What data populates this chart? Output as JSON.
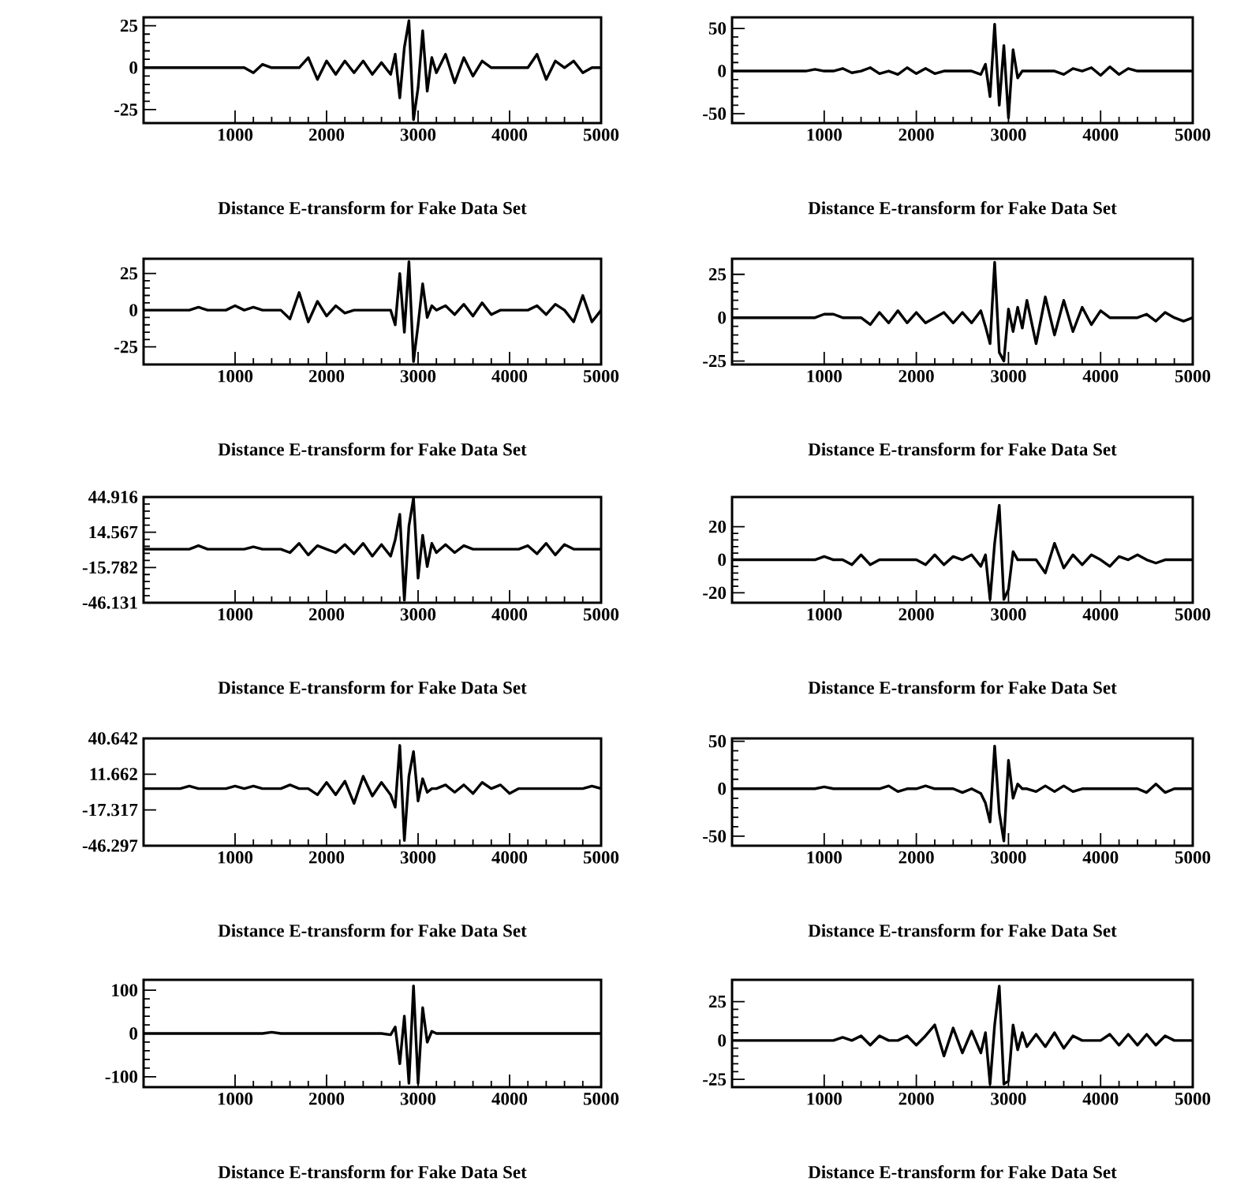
{
  "chart_data": [
    {
      "type": "line",
      "xlabel": "Distance E-transform for Fake Data Set",
      "color": "#000000",
      "xlim": [
        0,
        5000
      ],
      "ylim": [
        -33,
        30
      ],
      "xticks": [
        1000,
        2000,
        3000,
        4000,
        5000
      ],
      "yticks": [
        -25,
        0,
        25
      ],
      "x": [
        0,
        100,
        200,
        300,
        400,
        500,
        600,
        700,
        800,
        900,
        1000,
        1100,
        1200,
        1300,
        1400,
        1500,
        1600,
        1700,
        1800,
        1900,
        2000,
        2100,
        2200,
        2300,
        2400,
        2500,
        2600,
        2700,
        2750,
        2800,
        2850,
        2900,
        2950,
        3000,
        3050,
        3100,
        3150,
        3200,
        3300,
        3400,
        3500,
        3600,
        3700,
        3800,
        3900,
        4000,
        4100,
        4200,
        4300,
        4400,
        4500,
        4600,
        4700,
        4800,
        4900,
        5000
      ],
      "values": [
        0,
        0,
        0,
        0,
        0,
        0,
        0,
        0,
        0,
        0,
        0,
        0,
        -3,
        2,
        0,
        0,
        0,
        0,
        6,
        -7,
        4,
        -4,
        4,
        -3,
        4,
        -4,
        3,
        -4,
        8,
        -18,
        12,
        28,
        -31,
        -12,
        22,
        -14,
        6,
        -3,
        8,
        -9,
        6,
        -5,
        4,
        0,
        0,
        0,
        0,
        0,
        8,
        -7,
        4,
        0,
        4,
        -3,
        0,
        0
      ]
    },
    {
      "type": "line",
      "xlabel": "Distance E-transform for Fake Data Set",
      "color": "#000000",
      "xlim": [
        0,
        5000
      ],
      "ylim": [
        -61,
        63
      ],
      "xticks": [
        1000,
        2000,
        3000,
        4000,
        5000
      ],
      "yticks": [
        -50,
        0,
        50
      ],
      "x": [
        0,
        100,
        200,
        300,
        400,
        500,
        600,
        700,
        800,
        900,
        1000,
        1100,
        1200,
        1300,
        1400,
        1500,
        1600,
        1700,
        1800,
        1900,
        2000,
        2100,
        2200,
        2300,
        2400,
        2500,
        2600,
        2700,
        2750,
        2800,
        2850,
        2900,
        2950,
        3000,
        3050,
        3100,
        3150,
        3200,
        3300,
        3400,
        3500,
        3600,
        3700,
        3800,
        3900,
        4000,
        4100,
        4200,
        4300,
        4400,
        4500,
        4600,
        4700,
        4800,
        4900,
        5000
      ],
      "values": [
        0,
        0,
        0,
        0,
        0,
        0,
        0,
        0,
        0,
        2,
        0,
        0,
        3,
        -2,
        0,
        4,
        -3,
        0,
        -4,
        4,
        -3,
        3,
        -3,
        0,
        0,
        0,
        0,
        -4,
        8,
        -30,
        55,
        -40,
        30,
        -55,
        25,
        -8,
        0,
        0,
        0,
        0,
        0,
        -4,
        3,
        0,
        4,
        -5,
        5,
        -4,
        3,
        0,
        0,
        0,
        0,
        0,
        0,
        0
      ]
    },
    {
      "type": "line",
      "xlabel": "Distance E-transform for Fake Data Set",
      "color": "#000000",
      "xlim": [
        0,
        5000
      ],
      "ylim": [
        -37,
        35
      ],
      "xticks": [
        1000,
        2000,
        3000,
        4000,
        5000
      ],
      "yticks": [
        -25,
        0,
        25
      ],
      "x": [
        0,
        100,
        200,
        300,
        400,
        500,
        600,
        700,
        800,
        900,
        1000,
        1100,
        1200,
        1300,
        1400,
        1500,
        1600,
        1700,
        1800,
        1900,
        2000,
        2100,
        2200,
        2300,
        2400,
        2500,
        2600,
        2700,
        2750,
        2800,
        2850,
        2900,
        2950,
        3000,
        3050,
        3100,
        3150,
        3200,
        3300,
        3400,
        3500,
        3600,
        3700,
        3800,
        3900,
        4000,
        4100,
        4200,
        4300,
        4400,
        4500,
        4600,
        4700,
        4800,
        4900,
        5000
      ],
      "values": [
        0,
        0,
        0,
        0,
        0,
        0,
        2,
        0,
        0,
        0,
        3,
        0,
        2,
        0,
        0,
        0,
        -6,
        12,
        -8,
        6,
        -4,
        3,
        -2,
        0,
        0,
        0,
        0,
        0,
        -10,
        25,
        -15,
        33,
        -35,
        -10,
        18,
        -5,
        3,
        0,
        3,
        -3,
        4,
        -4,
        5,
        -3,
        0,
        0,
        0,
        0,
        3,
        -3,
        4,
        0,
        -8,
        10,
        -8,
        0
      ]
    },
    {
      "type": "line",
      "xlabel": "Distance E-transform for Fake Data Set",
      "color": "#000000",
      "xlim": [
        0,
        5000
      ],
      "ylim": [
        -27,
        34
      ],
      "xticks": [
        1000,
        2000,
        3000,
        4000,
        5000
      ],
      "yticks": [
        -25,
        0,
        25
      ],
      "x": [
        0,
        100,
        200,
        300,
        400,
        500,
        600,
        700,
        800,
        900,
        1000,
        1100,
        1200,
        1300,
        1400,
        1500,
        1600,
        1700,
        1800,
        1900,
        2000,
        2100,
        2200,
        2300,
        2400,
        2500,
        2600,
        2700,
        2750,
        2800,
        2850,
        2900,
        2950,
        3000,
        3050,
        3100,
        3150,
        3200,
        3300,
        3400,
        3500,
        3600,
        3700,
        3800,
        3900,
        4000,
        4100,
        4200,
        4300,
        4400,
        4500,
        4600,
        4700,
        4800,
        4900,
        5000
      ],
      "values": [
        0,
        0,
        0,
        0,
        0,
        0,
        0,
        0,
        0,
        0,
        2,
        2,
        0,
        0,
        0,
        -4,
        3,
        -3,
        4,
        -3,
        3,
        -3,
        0,
        3,
        -3,
        3,
        -3,
        4,
        -5,
        -15,
        32,
        -20,
        -25,
        5,
        -8,
        6,
        -6,
        10,
        -15,
        12,
        -10,
        10,
        -8,
        6,
        -4,
        4,
        0,
        0,
        0,
        0,
        2,
        -2,
        3,
        0,
        -2,
        0
      ]
    },
    {
      "type": "line",
      "xlabel": "Distance E-transform for Fake Data Set",
      "color": "#000000",
      "xlim": [
        0,
        5000
      ],
      "ylim": [
        -46.131,
        44.916
      ],
      "xticks": [
        1000,
        2000,
        3000,
        4000,
        5000
      ],
      "yticks": [
        -46.131,
        -15.782,
        14.567,
        44.916
      ],
      "x": [
        0,
        100,
        200,
        300,
        400,
        500,
        600,
        700,
        800,
        900,
        1000,
        1100,
        1200,
        1300,
        1400,
        1500,
        1600,
        1700,
        1800,
        1900,
        2000,
        2100,
        2200,
        2300,
        2400,
        2500,
        2600,
        2700,
        2750,
        2800,
        2850,
        2900,
        2950,
        3000,
        3050,
        3100,
        3150,
        3200,
        3300,
        3400,
        3500,
        3600,
        3700,
        3800,
        3900,
        4000,
        4100,
        4200,
        4300,
        4400,
        4500,
        4600,
        4700,
        4800,
        4900,
        5000
      ],
      "values": [
        0,
        0,
        0,
        0,
        0,
        0,
        3,
        0,
        0,
        0,
        0,
        0,
        2,
        0,
        0,
        0,
        -3,
        5,
        -5,
        3,
        0,
        -3,
        4,
        -4,
        5,
        -6,
        4,
        -6,
        8,
        30,
        -44,
        20,
        44,
        -25,
        12,
        -15,
        5,
        -3,
        4,
        -3,
        3,
        0,
        0,
        0,
        0,
        0,
        0,
        3,
        -4,
        5,
        -5,
        4,
        0,
        0,
        0,
        0
      ]
    },
    {
      "type": "line",
      "xlabel": "Distance E-transform for Fake Data Set",
      "color": "#000000",
      "xlim": [
        0,
        5000
      ],
      "ylim": [
        -26,
        38
      ],
      "xticks": [
        1000,
        2000,
        3000,
        4000,
        5000
      ],
      "yticks": [
        -20,
        0,
        20
      ],
      "x": [
        0,
        100,
        200,
        300,
        400,
        500,
        600,
        700,
        800,
        900,
        1000,
        1100,
        1200,
        1300,
        1400,
        1500,
        1600,
        1700,
        1800,
        1900,
        2000,
        2100,
        2200,
        2300,
        2400,
        2500,
        2600,
        2700,
        2750,
        2800,
        2850,
        2900,
        2950,
        3000,
        3050,
        3100,
        3150,
        3200,
        3300,
        3400,
        3500,
        3600,
        3700,
        3800,
        3900,
        4000,
        4100,
        4200,
        4300,
        4400,
        4500,
        4600,
        4700,
        4800,
        4900,
        5000
      ],
      "values": [
        0,
        0,
        0,
        0,
        0,
        0,
        0,
        0,
        0,
        0,
        2,
        0,
        0,
        -3,
        3,
        -3,
        0,
        0,
        0,
        0,
        0,
        -3,
        3,
        -3,
        2,
        0,
        3,
        -4,
        3,
        -24,
        10,
        33,
        -24,
        -18,
        5,
        0,
        0,
        0,
        0,
        -8,
        10,
        -5,
        3,
        -3,
        3,
        0,
        -4,
        2,
        0,
        3,
        0,
        -2,
        0,
        0,
        0,
        0
      ]
    },
    {
      "type": "line",
      "xlabel": "Distance E-transform for Fake Data Set",
      "color": "#000000",
      "xlim": [
        0,
        5000
      ],
      "ylim": [
        -46.297,
        40.642
      ],
      "xticks": [
        1000,
        2000,
        3000,
        4000,
        5000
      ],
      "yticks": [
        -46.297,
        -17.317,
        11.662,
        40.642
      ],
      "x": [
        0,
        100,
        200,
        300,
        400,
        500,
        600,
        700,
        800,
        900,
        1000,
        1100,
        1200,
        1300,
        1400,
        1500,
        1600,
        1700,
        1800,
        1900,
        2000,
        2100,
        2200,
        2300,
        2400,
        2500,
        2600,
        2700,
        2750,
        2800,
        2850,
        2900,
        2950,
        3000,
        3050,
        3100,
        3150,
        3200,
        3300,
        3400,
        3500,
        3600,
        3700,
        3800,
        3900,
        4000,
        4100,
        4200,
        4300,
        4400,
        4500,
        4600,
        4700,
        4800,
        4900,
        5000
      ],
      "values": [
        0,
        0,
        0,
        0,
        0,
        2,
        0,
        0,
        0,
        0,
        2,
        0,
        2,
        0,
        0,
        0,
        3,
        0,
        0,
        -5,
        5,
        -5,
        6,
        -12,
        10,
        -6,
        5,
        -5,
        -15,
        35,
        -42,
        10,
        30,
        -10,
        8,
        -3,
        0,
        0,
        3,
        -3,
        3,
        -4,
        5,
        0,
        3,
        -4,
        0,
        0,
        0,
        0,
        0,
        0,
        0,
        0,
        2,
        0
      ]
    },
    {
      "type": "line",
      "xlabel": "Distance E-transform for Fake Data Set",
      "color": "#000000",
      "xlim": [
        0,
        5000
      ],
      "ylim": [
        -60,
        53
      ],
      "xticks": [
        1000,
        2000,
        3000,
        4000,
        5000
      ],
      "yticks": [
        -50,
        0,
        50
      ],
      "x": [
        0,
        100,
        200,
        300,
        400,
        500,
        600,
        700,
        800,
        900,
        1000,
        1100,
        1200,
        1300,
        1400,
        1500,
        1600,
        1700,
        1800,
        1900,
        2000,
        2100,
        2200,
        2300,
        2400,
        2500,
        2600,
        2700,
        2750,
        2800,
        2850,
        2900,
        2950,
        3000,
        3050,
        3100,
        3150,
        3200,
        3300,
        3400,
        3500,
        3600,
        3700,
        3800,
        3900,
        4000,
        4100,
        4200,
        4300,
        4400,
        4500,
        4600,
        4700,
        4800,
        4900,
        5000
      ],
      "values": [
        0,
        0,
        0,
        0,
        0,
        0,
        0,
        0,
        0,
        0,
        2,
        0,
        0,
        0,
        0,
        0,
        0,
        3,
        -3,
        0,
        0,
        3,
        0,
        0,
        0,
        -4,
        0,
        -5,
        -15,
        -35,
        45,
        -25,
        -55,
        30,
        -10,
        5,
        0,
        0,
        -3,
        3,
        -3,
        3,
        -3,
        0,
        0,
        0,
        0,
        0,
        0,
        0,
        -4,
        5,
        -4,
        0,
        0,
        0
      ]
    },
    {
      "type": "line",
      "xlabel": "Distance E-transform for Fake Data Set",
      "color": "#000000",
      "xlim": [
        0,
        5000
      ],
      "ylim": [
        -124,
        124
      ],
      "xticks": [
        1000,
        2000,
        3000,
        4000,
        5000
      ],
      "yticks": [
        -100,
        0,
        100
      ],
      "x": [
        0,
        100,
        200,
        300,
        400,
        500,
        600,
        700,
        800,
        900,
        1000,
        1100,
        1200,
        1300,
        1400,
        1500,
        1600,
        1700,
        1800,
        1900,
        2000,
        2100,
        2200,
        2300,
        2400,
        2500,
        2600,
        2700,
        2750,
        2800,
        2850,
        2900,
        2950,
        3000,
        3050,
        3100,
        3150,
        3200,
        3300,
        3400,
        3500,
        3600,
        3700,
        3800,
        3900,
        4000,
        4100,
        4200,
        4300,
        4400,
        4500,
        4600,
        4700,
        4800,
        4900,
        5000
      ],
      "values": [
        0,
        0,
        0,
        0,
        0,
        0,
        0,
        0,
        0,
        0,
        0,
        0,
        0,
        0,
        3,
        0,
        0,
        0,
        0,
        0,
        0,
        0,
        0,
        0,
        0,
        0,
        0,
        -3,
        15,
        -70,
        40,
        -115,
        110,
        -115,
        60,
        -20,
        5,
        0,
        0,
        0,
        0,
        0,
        0,
        0,
        0,
        0,
        0,
        0,
        0,
        0,
        0,
        0,
        0,
        0,
        0,
        0
      ]
    },
    {
      "type": "line",
      "xlabel": "Distance E-transform for Fake Data Set",
      "color": "#000000",
      "xlim": [
        0,
        5000
      ],
      "ylim": [
        -30,
        39
      ],
      "xticks": [
        1000,
        2000,
        3000,
        4000,
        5000
      ],
      "yticks": [
        -25,
        0,
        25
      ],
      "x": [
        0,
        100,
        200,
        300,
        400,
        500,
        600,
        700,
        800,
        900,
        1000,
        1100,
        1200,
        1300,
        1400,
        1500,
        1600,
        1700,
        1800,
        1900,
        2000,
        2100,
        2200,
        2300,
        2400,
        2500,
        2600,
        2700,
        2750,
        2800,
        2850,
        2900,
        2950,
        3000,
        3050,
        3100,
        3150,
        3200,
        3300,
        3400,
        3500,
        3600,
        3700,
        3800,
        3900,
        4000,
        4100,
        4200,
        4300,
        4400,
        4500,
        4600,
        4700,
        4800,
        4900,
        5000
      ],
      "values": [
        0,
        0,
        0,
        0,
        0,
        0,
        0,
        0,
        0,
        0,
        0,
        0,
        2,
        0,
        3,
        -3,
        3,
        0,
        0,
        3,
        -3,
        3,
        10,
        -10,
        8,
        -8,
        6,
        -8,
        5,
        -28,
        10,
        35,
        -28,
        -26,
        10,
        -6,
        5,
        -4,
        4,
        -4,
        5,
        -5,
        3,
        0,
        0,
        0,
        4,
        -3,
        4,
        -3,
        4,
        -3,
        3,
        0,
        0,
        0
      ]
    }
  ]
}
